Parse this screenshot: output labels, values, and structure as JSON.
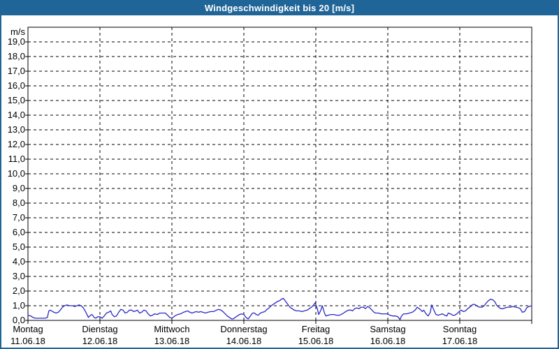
{
  "header": {
    "title": "Windgeschwindigkeit bis 20 [m/s]"
  },
  "colors": {
    "frame": "#1f6597",
    "title_bar_bg": "#1f6597",
    "title_text": "#ffffff",
    "plot_bg": "#ffffff",
    "grid": "#000000",
    "axis": "#000000",
    "series_line": "#2828c8"
  },
  "chart_data": {
    "type": "line",
    "title": "Windgeschwindigkeit bis 20 [m/s]",
    "ylabel": "m/s",
    "ylim": [
      0,
      20
    ],
    "ytick_step": 1,
    "ytick_labels": [
      "0,0",
      "1,0",
      "2,0",
      "3,0",
      "4,0",
      "5,0",
      "6,0",
      "7,0",
      "8,0",
      "9,0",
      "10,0",
      "11,0",
      "12,0",
      "13,0",
      "14,0",
      "15,0",
      "16,0",
      "17,0",
      "18,0",
      "19,0"
    ],
    "grid": "dashed",
    "legend": "none",
    "x_axis": {
      "unit": "days",
      "range": [
        0,
        7
      ],
      "day_labels": [
        {
          "name": "Montag",
          "date": "11.06.18"
        },
        {
          "name": "Dienstag",
          "date": "12.06.18"
        },
        {
          "name": "Mittwoch",
          "date": "13.06.18"
        },
        {
          "name": "Donnerstag",
          "date": "14.06.18"
        },
        {
          "name": "Freitag",
          "date": "15.06.18"
        },
        {
          "name": "Samstag",
          "date": "16.06.18"
        },
        {
          "name": "Sonntag",
          "date": "17.06.18"
        }
      ]
    },
    "series": [
      {
        "name": "Windgeschwindigkeit",
        "color": "#2828c8",
        "x": [
          0,
          0.04,
          0.07,
          0.1,
          0.15,
          0.19,
          0.24,
          0.27,
          0.29,
          0.31,
          0.33,
          0.36,
          0.39,
          0.42,
          0.45,
          0.48,
          0.51,
          0.54,
          0.58,
          0.62,
          0.65,
          0.68,
          0.71,
          0.74,
          0.77,
          0.8,
          0.83,
          0.84,
          0.87,
          0.89,
          0.92,
          0.94,
          0.97,
          1.0,
          1.03,
          1.06,
          1.09,
          1.12,
          1.15,
          1.17,
          1.2,
          1.23,
          1.26,
          1.29,
          1.32,
          1.35,
          1.38,
          1.41,
          1.44,
          1.47,
          1.5,
          1.52,
          1.55,
          1.58,
          1.61,
          1.64,
          1.67,
          1.7,
          1.73,
          1.76,
          1.8,
          1.83,
          1.87,
          1.91,
          1.94,
          1.97,
          2.0,
          2.04,
          2.08,
          2.12,
          2.16,
          2.19,
          2.22,
          2.25,
          2.28,
          2.31,
          2.34,
          2.37,
          2.4,
          2.43,
          2.47,
          2.5,
          2.54,
          2.58,
          2.62,
          2.65,
          2.68,
          2.71,
          2.74,
          2.77,
          2.8,
          2.83,
          2.85,
          2.88,
          2.91,
          2.94,
          2.97,
          3.0,
          3.03,
          3.06,
          3.09,
          3.12,
          3.15,
          3.17,
          3.2,
          3.23,
          3.26,
          3.29,
          3.32,
          3.35,
          3.38,
          3.41,
          3.44,
          3.47,
          3.5,
          3.52,
          3.55,
          3.58,
          3.61,
          3.64,
          3.67,
          3.7,
          3.73,
          3.77,
          3.81,
          3.84,
          3.88,
          3.91,
          3.94,
          3.97,
          3.99,
          4.02,
          4.04,
          4.07,
          4.09,
          4.12,
          4.14,
          4.17,
          4.21,
          4.25,
          4.29,
          4.33,
          4.37,
          4.4,
          4.43,
          4.46,
          4.49,
          4.51,
          4.54,
          4.57,
          4.6,
          4.63,
          4.66,
          4.69,
          4.72,
          4.75,
          4.78,
          4.81,
          4.83,
          4.87,
          4.91,
          4.95,
          4.99,
          5.03,
          5.07,
          5.11,
          5.14,
          5.17,
          5.19,
          5.22,
          5.26,
          5.3,
          5.34,
          5.38,
          5.41,
          5.45,
          5.48,
          5.5,
          5.53,
          5.56,
          5.59,
          5.61,
          5.64,
          5.67,
          5.7,
          5.73,
          5.76,
          5.79,
          5.82,
          5.84,
          5.87,
          5.9,
          5.93,
          5.96,
          5.99,
          6.02,
          6.05,
          6.08,
          6.11,
          6.14,
          6.17,
          6.19,
          6.22,
          6.25,
          6.28,
          6.31,
          6.34,
          6.37,
          6.4,
          6.43,
          6.46,
          6.49,
          6.51,
          6.54,
          6.57,
          6.6,
          6.63,
          6.66,
          6.7,
          6.74,
          6.78,
          6.82,
          6.84,
          6.87,
          6.9,
          6.93,
          6.96,
          7.0
        ],
        "y": [
          0.35,
          0.3,
          0.2,
          0.15,
          0.15,
          0.15,
          0.15,
          0.2,
          0.65,
          0.7,
          0.65,
          0.55,
          0.5,
          0.55,
          0.7,
          0.9,
          1.0,
          1.05,
          1.0,
          1.0,
          0.95,
          1.0,
          1.05,
          1.0,
          0.85,
          0.6,
          0.3,
          0.2,
          0.35,
          0.4,
          0.2,
          0.15,
          0.25,
          0.25,
          0.15,
          0.3,
          0.5,
          0.55,
          0.65,
          0.4,
          0.25,
          0.3,
          0.55,
          0.75,
          0.7,
          0.5,
          0.55,
          0.7,
          0.7,
          0.6,
          0.65,
          0.7,
          0.5,
          0.55,
          0.7,
          0.65,
          0.45,
          0.3,
          0.35,
          0.45,
          0.4,
          0.5,
          0.5,
          0.5,
          0.35,
          0.2,
          0.15,
          0.3,
          0.4,
          0.45,
          0.55,
          0.6,
          0.65,
          0.55,
          0.5,
          0.55,
          0.6,
          0.55,
          0.6,
          0.55,
          0.5,
          0.55,
          0.6,
          0.6,
          0.7,
          0.75,
          0.7,
          0.6,
          0.45,
          0.3,
          0.2,
          0.1,
          0.1,
          0.2,
          0.3,
          0.4,
          0.45,
          0.4,
          0.2,
          0.1,
          0.3,
          0.5,
          0.5,
          0.4,
          0.35,
          0.5,
          0.55,
          0.6,
          0.75,
          0.85,
          1.0,
          1.1,
          1.2,
          1.3,
          1.35,
          1.45,
          1.5,
          1.3,
          1.1,
          0.9,
          0.8,
          0.7,
          0.65,
          0.65,
          0.6,
          0.65,
          0.7,
          0.8,
          0.9,
          1.05,
          1.2,
          0.8,
          0.4,
          0.7,
          1.0,
          0.5,
          0.3,
          0.35,
          0.4,
          0.4,
          0.35,
          0.35,
          0.45,
          0.55,
          0.65,
          0.7,
          0.7,
          0.65,
          0.8,
          0.85,
          0.8,
          0.9,
          0.9,
          0.8,
          0.95,
          0.85,
          0.7,
          0.55,
          0.5,
          0.5,
          0.45,
          0.45,
          0.45,
          0.35,
          0.3,
          0.3,
          0.25,
          0.05,
          0.3,
          0.45,
          0.45,
          0.5,
          0.55,
          0.7,
          0.9,
          0.75,
          0.6,
          0.7,
          0.45,
          0.3,
          0.55,
          1.05,
          0.7,
          0.4,
          0.35,
          0.4,
          0.45,
          0.35,
          0.3,
          0.5,
          0.45,
          0.35,
          0.35,
          0.45,
          0.6,
          0.7,
          0.6,
          0.65,
          0.8,
          0.9,
          1.05,
          1.1,
          1.05,
          0.95,
          0.9,
          0.9,
          1.0,
          1.2,
          1.35,
          1.45,
          1.4,
          1.25,
          1.05,
          0.9,
          0.8,
          0.8,
          0.85,
          0.9,
          0.9,
          0.95,
          0.9,
          0.85,
          0.8,
          0.55,
          0.6,
          0.85,
          0.95,
          1.0
        ]
      }
    ]
  }
}
